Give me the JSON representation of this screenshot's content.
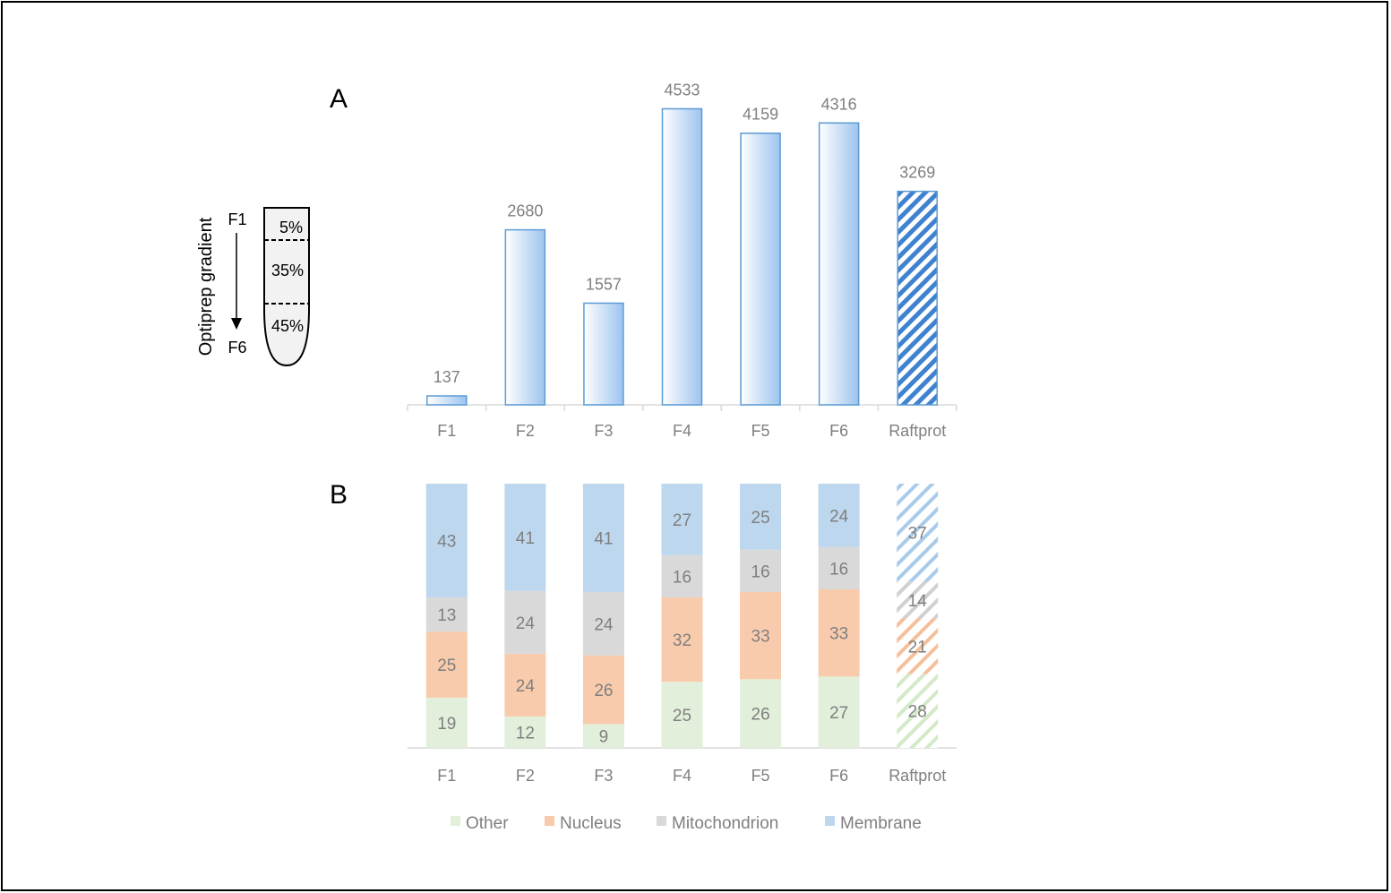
{
  "panel_labels": {
    "a": "A",
    "b": "B"
  },
  "gradient": {
    "axis_label": "Optiprep gradient",
    "top_label": "F1",
    "bottom_label": "F6",
    "layers": [
      "5%",
      "35%",
      "45%"
    ]
  },
  "colors": {
    "bar_fill": "#a8c8ee",
    "bar_edge": "#5b9bd5",
    "other": "#e2efda",
    "nucleus": "#f8cbad",
    "mitochondrion": "#d9d9d9",
    "membrane": "#bdd7ee",
    "axis": "#d9d9d9",
    "label": "#7f7f7f"
  },
  "chart_data": [
    {
      "type": "bar",
      "panel": "A",
      "categories": [
        "F1",
        "F2",
        "F3",
        "F4",
        "F5",
        "F6",
        "Raftprot"
      ],
      "values": [
        137,
        2680,
        1557,
        4533,
        4159,
        4316,
        3269
      ],
      "hatched_categories": [
        "Raftprot"
      ],
      "ylim": [
        0,
        4800
      ],
      "grid": false,
      "data_labels": true
    },
    {
      "type": "bar",
      "stacked": true,
      "panel": "B",
      "categories": [
        "F1",
        "F2",
        "F3",
        "F4",
        "F5",
        "F6",
        "Raftprot"
      ],
      "series": [
        {
          "name": "Other",
          "values": [
            19,
            12,
            9,
            25,
            26,
            27,
            28
          ]
        },
        {
          "name": "Nucleus",
          "values": [
            25,
            24,
            26,
            32,
            33,
            33,
            21
          ]
        },
        {
          "name": "Mitochondrion",
          "values": [
            13,
            24,
            24,
            16,
            16,
            16,
            14
          ]
        },
        {
          "name": "Membrane",
          "values": [
            43,
            41,
            41,
            27,
            25,
            24,
            37
          ]
        }
      ],
      "hatched_categories": [
        "Raftprot"
      ],
      "legend": "bottom",
      "grid": false,
      "data_labels": true
    }
  ]
}
